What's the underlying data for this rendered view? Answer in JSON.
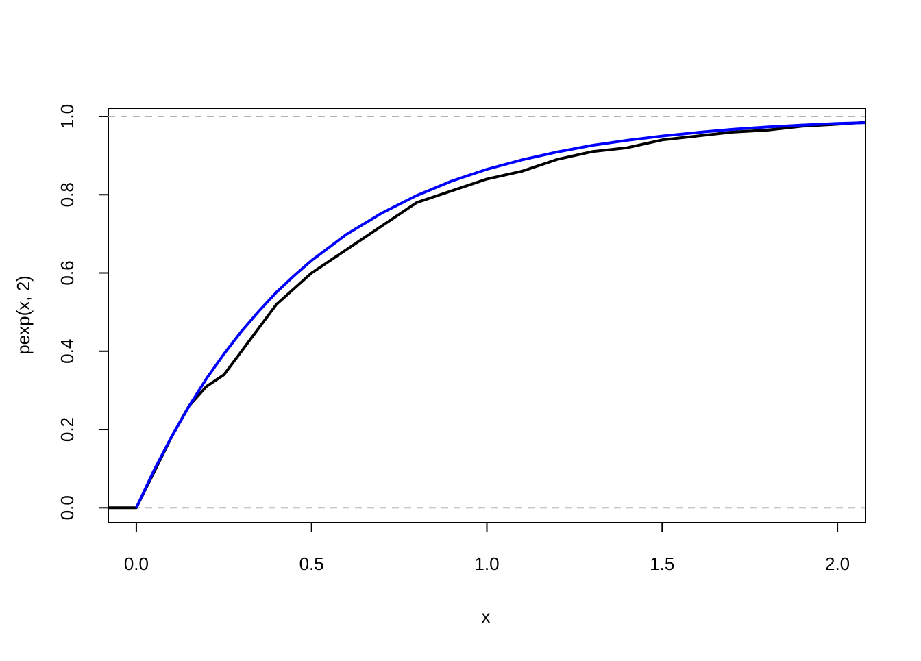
{
  "chart_data": {
    "type": "line",
    "xlabel": "x",
    "ylabel": "pexp(x, 2)",
    "x": [
      -0.08,
      0,
      0.05,
      0.1,
      0.15,
      0.2,
      0.25,
      0.3,
      0.35,
      0.4,
      0.45,
      0.5,
      0.6,
      0.7,
      0.8,
      0.9,
      1.0,
      1.1,
      1.2,
      1.3,
      1.4,
      1.5,
      1.6,
      1.7,
      1.8,
      1.9,
      2.0,
      2.08
    ],
    "series": [
      {
        "color": "#000000",
        "values": [
          0,
          0,
          0.09,
          0.18,
          0.26,
          0.31,
          0.34,
          0.4,
          0.46,
          0.52,
          0.56,
          0.6,
          0.66,
          0.72,
          0.78,
          0.81,
          0.84,
          0.86,
          0.89,
          0.91,
          0.92,
          0.94,
          0.95,
          0.96,
          0.965,
          0.975,
          0.98,
          0.985
        ]
      },
      {
        "color": "#0000ff",
        "values": [
          null,
          0,
          0.095,
          0.181,
          0.259,
          0.33,
          0.393,
          0.451,
          0.503,
          0.551,
          0.593,
          0.632,
          0.699,
          0.753,
          0.798,
          0.835,
          0.865,
          0.889,
          0.909,
          0.926,
          0.939,
          0.95,
          0.959,
          0.967,
          0.973,
          0.978,
          0.982,
          0.984
        ]
      }
    ],
    "hlines": [
      0,
      1
    ],
    "hline_color": "#b3b3b3",
    "xlim": [
      -0.08,
      2.08
    ],
    "ylim": [
      -0.038,
      1.021
    ],
    "xticks": [
      {
        "value": 0,
        "label": "0.0"
      },
      0.5,
      {
        "value": 1,
        "label": "1.0"
      },
      1.5,
      {
        "value": 2,
        "label": "2.0"
      }
    ],
    "yticks": [
      {
        "value": 0,
        "label": "0.0"
      },
      0.2,
      0.4,
      0.6,
      0.8,
      {
        "value": 1,
        "label": "1.0"
      }
    ],
    "grid": false
  }
}
